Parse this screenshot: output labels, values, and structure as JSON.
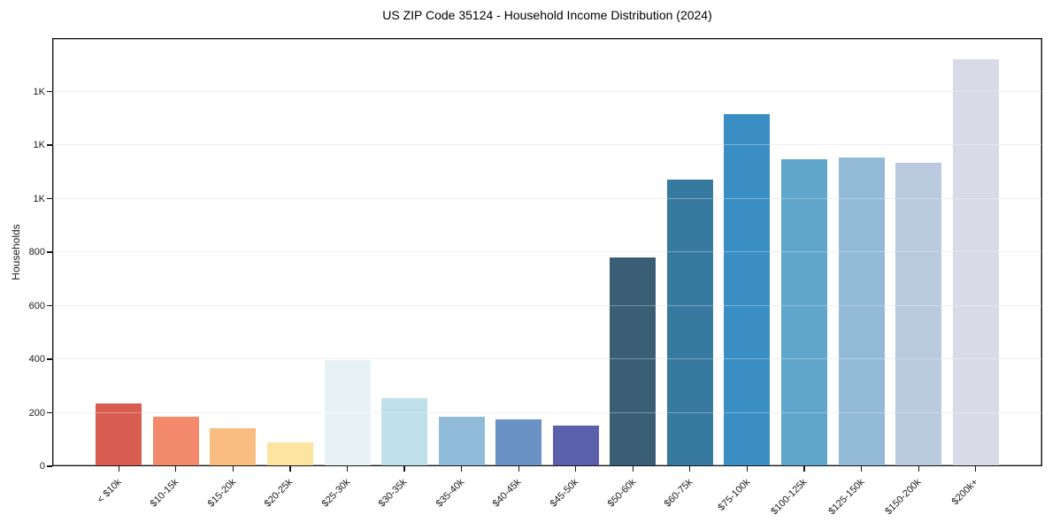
{
  "chart_data": {
    "type": "bar",
    "title": "US ZIP Code 35124 - Household Income Distribution (2024)",
    "xlabel": "",
    "ylabel": "Households",
    "categories": [
      "< $10k",
      "$10-15k",
      "$15-20k",
      "$20-25k",
      "$25-30k",
      "$30-35k",
      "$35-40k",
      "$40-45k",
      "$45-50k",
      "$50-60k",
      "$60-75k",
      "$75-100k",
      "$100-125k",
      "$125-150k",
      "$150-200k",
      "$200k+"
    ],
    "values": [
      232,
      182,
      139,
      87,
      394,
      251,
      182,
      172,
      149,
      778,
      1068,
      1313,
      1145,
      1150,
      1129,
      1518
    ],
    "bar_colors": [
      "#d95c51",
      "#f38a6b",
      "#f9bd82",
      "#fde4a0",
      "#e7f2f7",
      "#bfe0eb",
      "#91bbda",
      "#6b92c4",
      "#5b60aa",
      "#3a5f75",
      "#38799f",
      "#3a8ec4",
      "#60a6cb",
      "#93bad7",
      "#b9cadf",
      "#d8dae7"
    ],
    "ylim": [
      0,
      1600
    ],
    "yticks": {
      "values": [
        0,
        200,
        400,
        600,
        800,
        1000,
        1200,
        1400
      ],
      "labels": [
        "0",
        "200",
        "400",
        "600",
        "800",
        "1K",
        "1K",
        "1K"
      ]
    },
    "grid": "horizontal",
    "legend": "none",
    "x_tick_rotation": 45,
    "spine_color": "#141414",
    "gridline_color": "#e8e8e8",
    "background_color": "#ffffff"
  }
}
